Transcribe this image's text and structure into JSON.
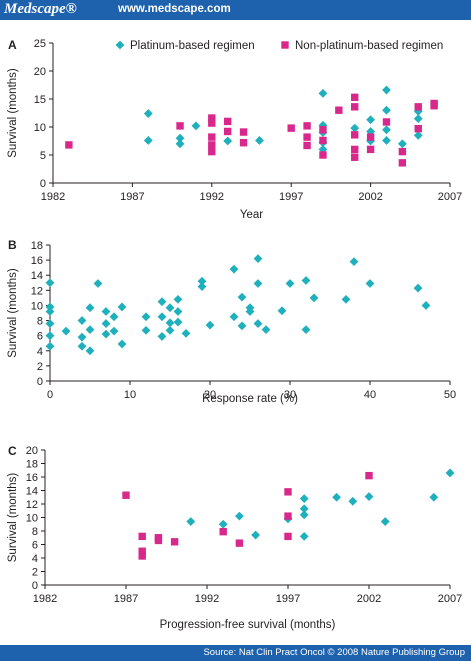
{
  "header": {
    "brand": "Medscape®",
    "site": "www.medscape.com"
  },
  "footer": {
    "source": "Source: Nat Clin Pract Oncol © 2008 Nature Publishing Group"
  },
  "colors": {
    "header_bg": "#1e62ae",
    "platinum": "#1fb0be",
    "non_platinum": "#d8288c"
  },
  "chart_data": [
    {
      "panel_label": "A",
      "type": "scatter",
      "xlabel": "Year",
      "ylabel": "Survival (months)",
      "xlim": [
        1982,
        2007
      ],
      "ylim": [
        0,
        25
      ],
      "xticks": [
        1982,
        1987,
        1992,
        1997,
        2002,
        2007
      ],
      "yticks": [
        0,
        5,
        10,
        15,
        20,
        25
      ],
      "legend": {
        "placement": "top",
        "show": true
      },
      "series": [
        {
          "name": "Platinum-based regimen",
          "marker": "diamond",
          "color": "#1fb0be",
          "points": [
            [
              1988,
              12.4
            ],
            [
              1988,
              7.6
            ],
            [
              1990,
              8.0
            ],
            [
              1990,
              7.0
            ],
            [
              1991,
              10.2
            ],
            [
              1993,
              7.5
            ],
            [
              1995,
              7.6
            ],
            [
              1999,
              16.0
            ],
            [
              1999,
              10.3
            ],
            [
              1999,
              9.0
            ],
            [
              1999,
              7.2
            ],
            [
              1999,
              6.0
            ],
            [
              2001,
              9.8
            ],
            [
              2002,
              11.3
            ],
            [
              2002,
              9.2
            ],
            [
              2002,
              7.5
            ],
            [
              2003,
              16.6
            ],
            [
              2003,
              13.0
            ],
            [
              2003,
              9.5
            ],
            [
              2003,
              7.6
            ],
            [
              2004,
              7.0
            ],
            [
              2005,
              12.8
            ],
            [
              2005,
              11.5
            ],
            [
              2005,
              8.5
            ]
          ]
        },
        {
          "name": "Non-platinum-based regimen",
          "marker": "square",
          "color": "#d8288c",
          "points": [
            [
              1983,
              6.8
            ],
            [
              1990,
              10.2
            ],
            [
              1992,
              11.6
            ],
            [
              1992,
              10.7
            ],
            [
              1992,
              8.2
            ],
            [
              1992,
              6.8
            ],
            [
              1992,
              5.6
            ],
            [
              1993,
              11.0
            ],
            [
              1993,
              9.2
            ],
            [
              1994,
              9.1
            ],
            [
              1994,
              7.2
            ],
            [
              1997,
              9.8
            ],
            [
              1998,
              10.2
            ],
            [
              1998,
              8.2
            ],
            [
              1998,
              6.7
            ],
            [
              1999,
              9.5
            ],
            [
              1999,
              7.6
            ],
            [
              1999,
              5.0
            ],
            [
              2000,
              13.0
            ],
            [
              2001,
              15.3
            ],
            [
              2001,
              13.6
            ],
            [
              2001,
              8.6
            ],
            [
              2001,
              6.0
            ],
            [
              2001,
              4.6
            ],
            [
              2002,
              8.2
            ],
            [
              2002,
              6.0
            ],
            [
              2003,
              10.9
            ],
            [
              2004,
              5.6
            ],
            [
              2004,
              3.6
            ],
            [
              2005,
              13.6
            ],
            [
              2005,
              9.7
            ],
            [
              2006,
              14.2
            ],
            [
              2006,
              13.8
            ]
          ]
        }
      ]
    },
    {
      "panel_label": "B",
      "type": "scatter",
      "xlabel": "Response rate (%)",
      "ylabel": "Survival (months)",
      "xlim": [
        0,
        50
      ],
      "ylim": [
        0,
        18
      ],
      "xticks": [
        0,
        10,
        20,
        30,
        40,
        50
      ],
      "yticks": [
        0,
        2,
        4,
        6,
        8,
        10,
        12,
        14,
        16,
        18
      ],
      "series": [
        {
          "name": "Platinum-based regimen",
          "marker": "diamond",
          "color": "#1fb0be",
          "points": [
            [
              0,
              13.0
            ],
            [
              0,
              9.8
            ],
            [
              0,
              9.2
            ],
            [
              0,
              7.6
            ],
            [
              0,
              6.0
            ],
            [
              0,
              4.6
            ],
            [
              2,
              6.6
            ],
            [
              4,
              8.0
            ],
            [
              4,
              5.8
            ],
            [
              4,
              4.6
            ],
            [
              5,
              9.7
            ],
            [
              5,
              6.8
            ],
            [
              5,
              4.0
            ],
            [
              6,
              12.9
            ],
            [
              7,
              9.2
            ],
            [
              7,
              7.6
            ],
            [
              7,
              6.2
            ],
            [
              8,
              8.5
            ],
            [
              8,
              6.6
            ],
            [
              9,
              9.8
            ],
            [
              9,
              4.9
            ],
            [
              12,
              8.5
            ],
            [
              12,
              6.7
            ],
            [
              14,
              10.5
            ],
            [
              14,
              8.5
            ],
            [
              14,
              5.9
            ],
            [
              15,
              9.7
            ],
            [
              15,
              7.7
            ],
            [
              15,
              6.7
            ],
            [
              16,
              10.8
            ],
            [
              16,
              9.2
            ],
            [
              16,
              7.8
            ],
            [
              17,
              6.3
            ],
            [
              19,
              12.5
            ],
            [
              19,
              13.2
            ],
            [
              20,
              7.4
            ],
            [
              23,
              14.8
            ],
            [
              23,
              8.5
            ],
            [
              24,
              11.1
            ],
            [
              24,
              7.3
            ],
            [
              25,
              9.7
            ],
            [
              25,
              9.2
            ],
            [
              26,
              16.2
            ],
            [
              26,
              12.9
            ],
            [
              26,
              7.6
            ],
            [
              27,
              6.8
            ],
            [
              29,
              9.3
            ],
            [
              30,
              12.9
            ],
            [
              32,
              13.3
            ],
            [
              32,
              6.8
            ],
            [
              33,
              11.0
            ],
            [
              37,
              10.8
            ],
            [
              38,
              15.8
            ],
            [
              40,
              12.9
            ],
            [
              46,
              12.3
            ],
            [
              47,
              10.0
            ]
          ]
        }
      ]
    },
    {
      "panel_label": "C",
      "type": "scatter",
      "xlabel": "Progression-free survival (months)",
      "ylabel": "Survival (months)",
      "xlim": [
        1982,
        2007
      ],
      "ylim": [
        0,
        20
      ],
      "xticks": [
        1982,
        1987,
        1992,
        1997,
        2002,
        2007
      ],
      "yticks": [
        0,
        2,
        4,
        6,
        8,
        10,
        12,
        14,
        16,
        18,
        20
      ],
      "series": [
        {
          "name": "Platinum-based regimen",
          "marker": "diamond",
          "color": "#1fb0be",
          "points": [
            [
              1991,
              9.4
            ],
            [
              1993,
              9.0
            ],
            [
              1994,
              10.2
            ],
            [
              1995,
              7.4
            ],
            [
              1997,
              9.8
            ],
            [
              1998,
              10.4
            ],
            [
              1998,
              11.3
            ],
            [
              1998,
              12.8
            ],
            [
              1998,
              7.2
            ],
            [
              2000,
              13.0
            ],
            [
              2001,
              12.4
            ],
            [
              2002,
              13.1
            ],
            [
              2003,
              9.4
            ],
            [
              2006,
              13.0
            ],
            [
              2007,
              16.6
            ]
          ]
        },
        {
          "name": "Non-platinum-based regimen",
          "marker": "square",
          "color": "#d8288c",
          "points": [
            [
              1987,
              13.3
            ],
            [
              1988,
              4.3
            ],
            [
              1988,
              5.0
            ],
            [
              1988,
              7.2
            ],
            [
              1989,
              7.0
            ],
            [
              1989,
              6.6
            ],
            [
              1990,
              6.4
            ],
            [
              1993,
              7.9
            ],
            [
              1994,
              6.2
            ],
            [
              1997,
              13.8
            ],
            [
              1997,
              10.2
            ],
            [
              1997,
              7.2
            ],
            [
              2002,
              16.2
            ]
          ]
        }
      ]
    }
  ]
}
